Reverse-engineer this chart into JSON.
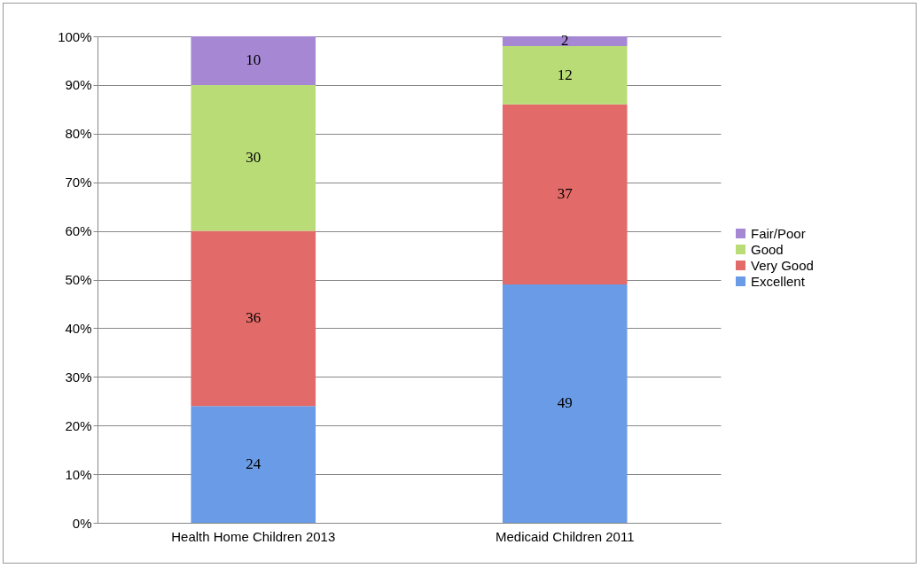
{
  "chart_data": {
    "type": "bar",
    "stacked": true,
    "categories": [
      "Health Home Children 2013",
      "Medicaid Children 2011"
    ],
    "series": [
      {
        "name": "Excellent",
        "color": "#6a9be6",
        "values": [
          24,
          49
        ]
      },
      {
        "name": "Very Good",
        "color": "#e26a68",
        "values": [
          36,
          37
        ]
      },
      {
        "name": "Good",
        "color": "#b9dc77",
        "values": [
          30,
          12
        ]
      },
      {
        "name": "Fair/Poor",
        "color": "#a587d4",
        "values": [
          10,
          2
        ]
      }
    ],
    "ylim": [
      0,
      100
    ],
    "yticks": [
      {
        "value": 0,
        "label": "0%"
      },
      {
        "value": 10,
        "label": "10%"
      },
      {
        "value": 20,
        "label": "20%"
      },
      {
        "value": 30,
        "label": "30%"
      },
      {
        "value": 40,
        "label": "40%"
      },
      {
        "value": 50,
        "label": "50%"
      },
      {
        "value": 60,
        "label": "60%"
      },
      {
        "value": 70,
        "label": "70%"
      },
      {
        "value": 80,
        "label": "80%"
      },
      {
        "value": 90,
        "label": "90%"
      },
      {
        "value": 100,
        "label": "100%"
      }
    ],
    "grid": "y",
    "legend": "right",
    "data_labels": true
  }
}
